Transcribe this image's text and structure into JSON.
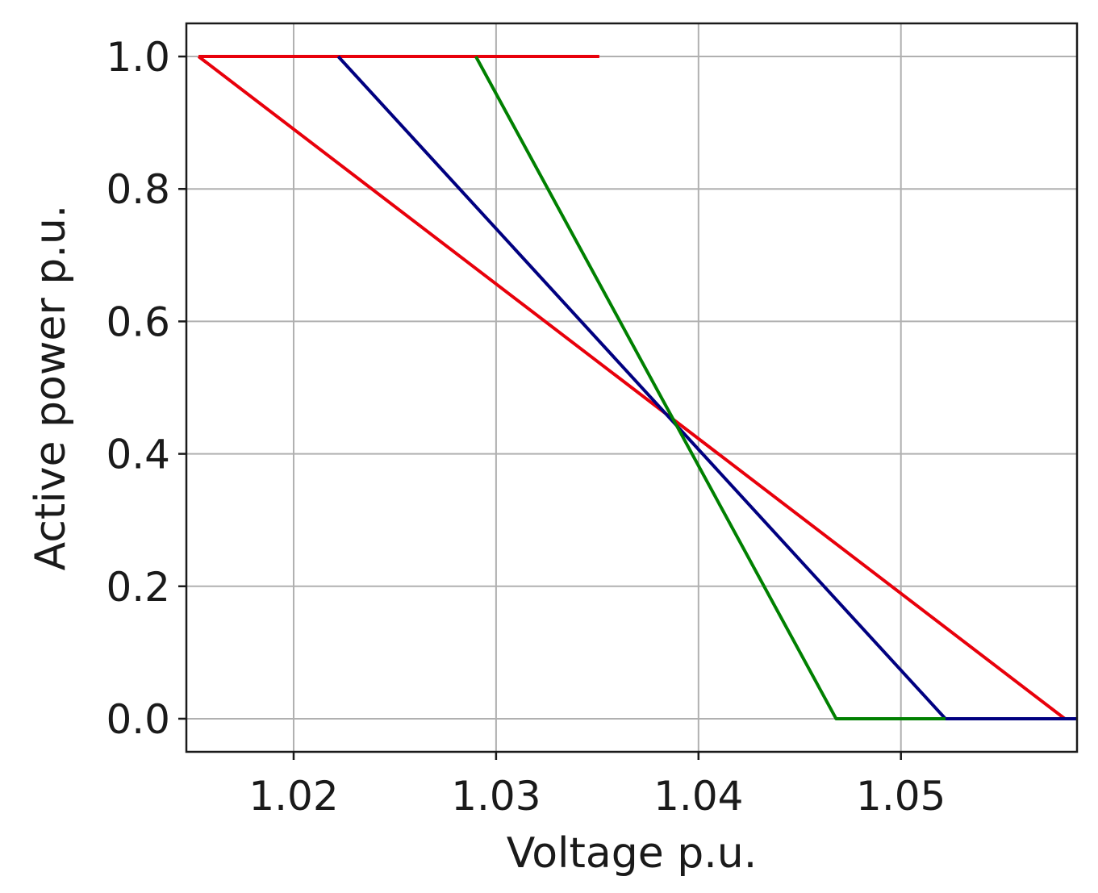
{
  "chart_data": {
    "type": "line",
    "title": "",
    "xlabel": "Voltage p.u.",
    "ylabel": "Active power p.u.",
    "xlim": [
      1.0147,
      1.0587
    ],
    "ylim": [
      -0.05,
      1.05
    ],
    "xticks": [
      1.02,
      1.03,
      1.04,
      1.05
    ],
    "xtick_labels": [
      "1.02",
      "1.03",
      "1.04",
      "1.05"
    ],
    "yticks": [
      0.0,
      0.2,
      0.4,
      0.6,
      0.8,
      1.0
    ],
    "ytick_labels": [
      "0.0",
      "0.2",
      "0.4",
      "0.6",
      "0.8",
      "1.0"
    ],
    "grid": true,
    "legend": "none",
    "series": [
      {
        "color": "#e8000b",
        "x": [
          1.0153,
          1.0351
        ],
        "y": [
          1.0,
          1.0
        ]
      },
      {
        "color": "#e8000b",
        "x": [
          1.0153,
          1.0581,
          1.0587
        ],
        "y": [
          1.0,
          0.0,
          0.0
        ]
      },
      {
        "color": "#000080",
        "x": [
          1.0222,
          1.0522,
          1.0587
        ],
        "y": [
          1.0,
          0.0,
          0.0
        ]
      },
      {
        "color": "#008000",
        "x": [
          1.029,
          1.0468,
          1.0522
        ],
        "y": [
          1.0,
          0.0,
          0.0
        ]
      }
    ]
  }
}
